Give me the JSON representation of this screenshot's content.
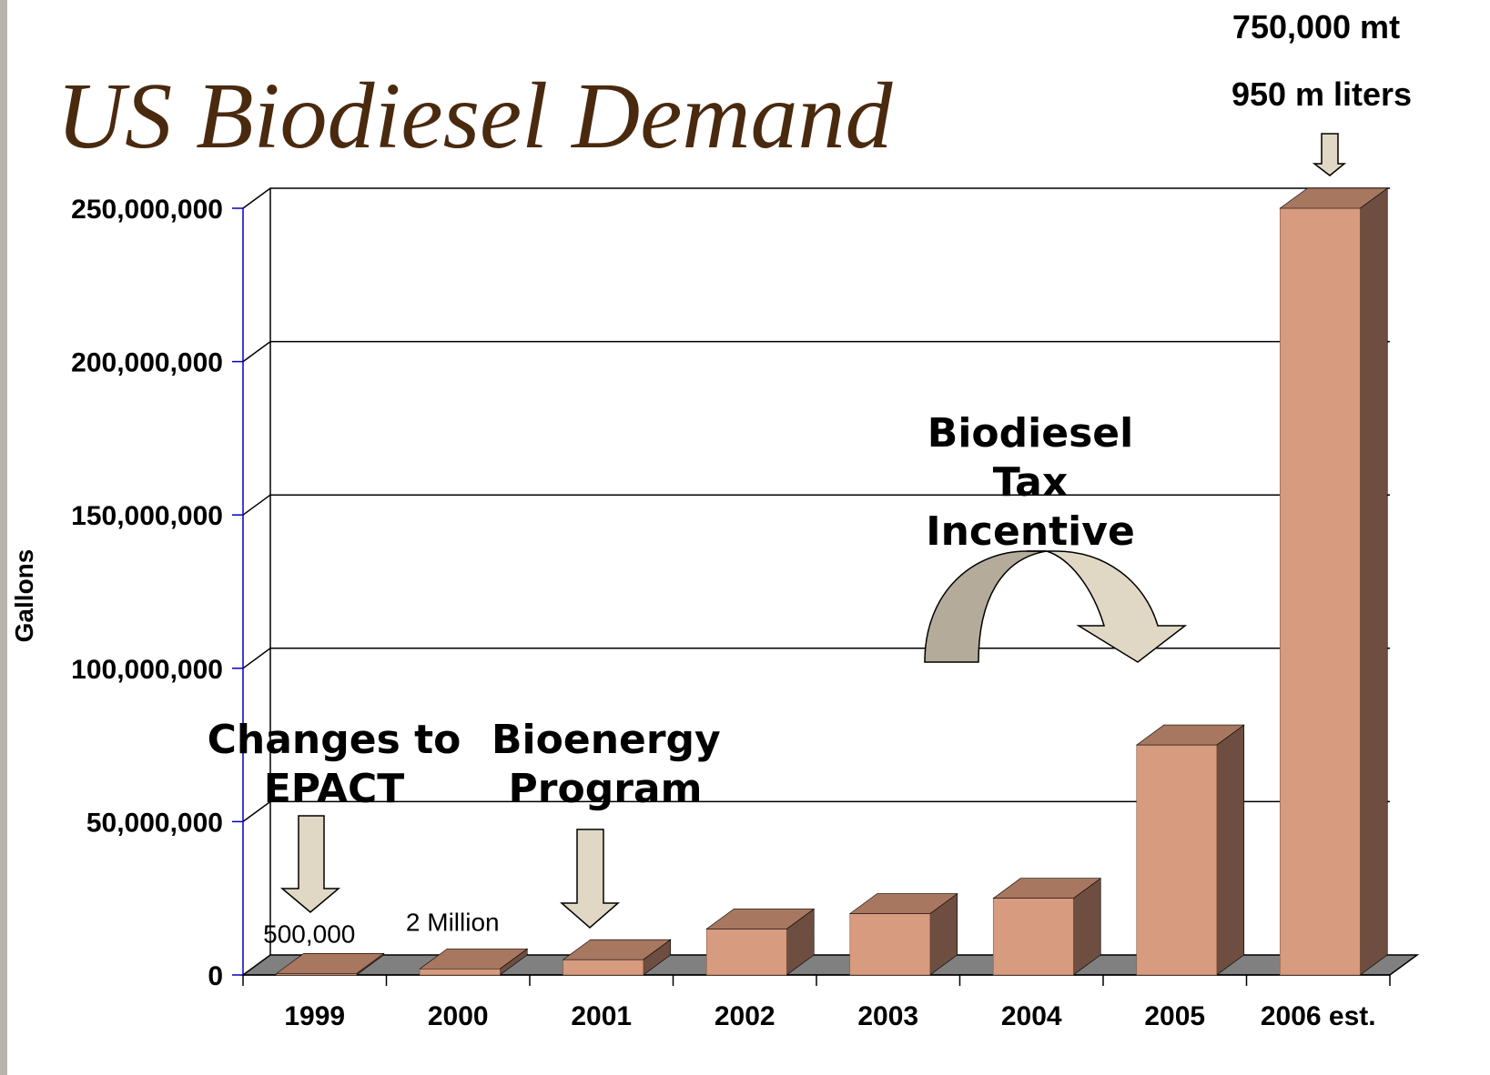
{
  "chart_data": {
    "type": "bar3d",
    "title": "US Biodiesel Demand",
    "y_label": "Gallons",
    "categories": [
      "1999",
      "2000",
      "2001",
      "2002",
      "2003",
      "2004",
      "2005",
      "2006 est."
    ],
    "values": [
      500000,
      2000000,
      5000000,
      15000000,
      20000000,
      25000000,
      75000000,
      250000000
    ],
    "value_labels": [
      "500,000",
      "2 Million",
      null,
      null,
      null,
      null,
      null,
      null
    ],
    "colors": {
      "front": "#d79b80",
      "top": "#a87760",
      "side": "#6e4e40",
      "floor": "#808080"
    },
    "ylim": [
      0,
      250000000
    ],
    "yticks": [
      0,
      {
        "value": 50000000,
        "label": "50,000,000"
      },
      {
        "value": 100000000,
        "label": "100,000,000"
      },
      {
        "value": 150000000,
        "label": "150,000,000"
      },
      {
        "value": 200000000,
        "label": "200,000,000"
      },
      {
        "value": 250000000,
        "label": "250,000,000"
      }
    ],
    "grid": true,
    "annotations": [
      "750,000 mt",
      "950 m liters",
      "Biodiesel Tax Incentive",
      "Changes to EPACT",
      "Bioenergy Program"
    ]
  }
}
